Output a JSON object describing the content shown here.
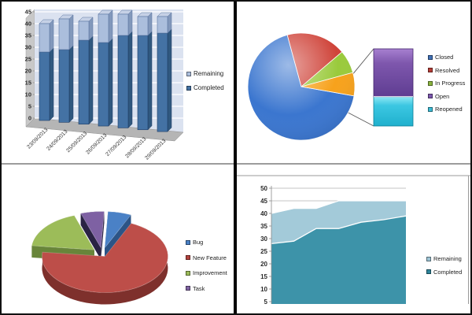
{
  "chart_data": [
    {
      "id": "sprint_bars",
      "type": "bar",
      "style": "3d-stacked-column",
      "title": "",
      "categories": [
        "23/09/2013",
        "24/09/2013",
        "25/09/2013",
        "26/09/2013",
        "27/09/2013",
        "28/09/2013",
        "29/09/2013"
      ],
      "series": [
        {
          "name": "Completed",
          "values": [
            28,
            29,
            33,
            32,
            35,
            35,
            36
          ],
          "color": "#4472a4",
          "side_color": "#30587f",
          "top_color": "#7d9cc3",
          "edge_color": "#1f3c66"
        },
        {
          "name": "Remaining",
          "values": [
            12,
            13,
            8,
            12,
            9,
            8,
            7
          ],
          "color": "#abbedc",
          "side_color": "#8298bb",
          "top_color": "#c6d1e6",
          "edge_color": "#5a74a0"
        }
      ],
      "ylim": [
        0,
        45
      ],
      "ytick_step": 5,
      "grid": "on",
      "legend_position": "right",
      "legend": [
        {
          "label": "Remaining",
          "color": "#abbedc"
        },
        {
          "label": "Completed",
          "color": "#4472a4"
        }
      ],
      "wall_color": "#dbe2f0",
      "grid_color": "#ffffff",
      "floor_color": "#b5b5b5",
      "side_wall_color": "#c8c8c8"
    },
    {
      "id": "status_bar_of_pie",
      "type": "pie",
      "variant": "bar-of-pie",
      "title": "",
      "rotation_deg": 100,
      "slices": [
        {
          "label": "Closed",
          "value": 68,
          "color": "#3b76cf"
        },
        {
          "label": "Resolved",
          "value": 18,
          "color": "#cf4339"
        },
        {
          "label": "In Progress",
          "value": 7,
          "color": "#9aca3c"
        },
        {
          "label": "Open",
          "value": 4.3,
          "color": "#7e57ad"
        },
        {
          "label": "Reopened",
          "value": 2.7,
          "color": "#3cc7e2"
        }
      ],
      "other_group": {
        "members": [
          "Open",
          "Reopened"
        ],
        "pie_slice_color": "#f7a21c",
        "bar_breakout": [
          {
            "label": "Open",
            "pct_of_group": 62,
            "color": "#7e57ad",
            "grad": [
              "#a780d0",
              "#7e57ad",
              "#5f3d92"
            ],
            "border": "#45276b"
          },
          {
            "label": "Reopened",
            "pct_of_group": 38,
            "color": "#3cc7e2",
            "grad": [
              "#8fe7f4",
              "#3cc7e2",
              "#1fb0cd"
            ],
            "border": "#0e7f97"
          }
        ]
      },
      "grid": "off",
      "legend_position": "right",
      "legend": [
        {
          "label": "Closed",
          "color": "#3f6fb5"
        },
        {
          "label": "Resolved",
          "color": "#b53c36"
        },
        {
          "label": "In Progress",
          "color": "#8ab43e"
        },
        {
          "label": "Open",
          "color": "#7b57ad"
        },
        {
          "label": "Reopened",
          "color": "#3bbcd6"
        }
      ]
    },
    {
      "id": "issue_type_pie",
      "type": "pie",
      "variant": "3d-exploded",
      "title": "",
      "rotation_deg": 3,
      "slices": [
        {
          "label": "Bug",
          "value": 6,
          "color": "#4a81c6",
          "dark": "#2c5486",
          "explode": 13
        },
        {
          "label": "New Feature",
          "value": 70,
          "color": "#bd4e49",
          "dark": "#7e302c",
          "explode": 7
        },
        {
          "label": "Improvement",
          "value": 18,
          "color": "#9cbc59",
          "dark": "#68853a",
          "explode": 13
        },
        {
          "label": "Task",
          "value": 6,
          "color": "#7e61a3",
          "dark": "#2a2344",
          "explode": 13
        }
      ],
      "grid": "off",
      "legend_position": "right",
      "legend": [
        {
          "label": "Bug",
          "color": "#4a81c6"
        },
        {
          "label": "New Feature",
          "color": "#b2423e"
        },
        {
          "label": "Improvement",
          "color": "#9bbb59"
        },
        {
          "label": "Task",
          "color": "#8064a2"
        }
      ]
    },
    {
      "id": "burnup_area",
      "type": "area",
      "style": "stacked",
      "title": "",
      "x_count": 7,
      "series": [
        {
          "name": "Completed",
          "values": [
            28,
            29,
            34,
            34,
            36.5,
            37.5,
            39
          ],
          "color": "#3d93a9"
        },
        {
          "name": "Remaining",
          "values": [
            12,
            13,
            8,
            11,
            8.5,
            7.5,
            6
          ],
          "color": "#a3cad9"
        }
      ],
      "ylim": [
        4,
        50
      ],
      "yticks": [
        5,
        10,
        15,
        20,
        25,
        30,
        35,
        40,
        45,
        50
      ],
      "grid": "on",
      "grid_color": "#b0b0b0",
      "boundary_stroke": "#ffffff",
      "legend_position": "right",
      "legend": [
        {
          "label": "Remaining",
          "color": "#9dc3d4"
        },
        {
          "label": "Completed",
          "color": "#2f859b"
        }
      ]
    }
  ]
}
